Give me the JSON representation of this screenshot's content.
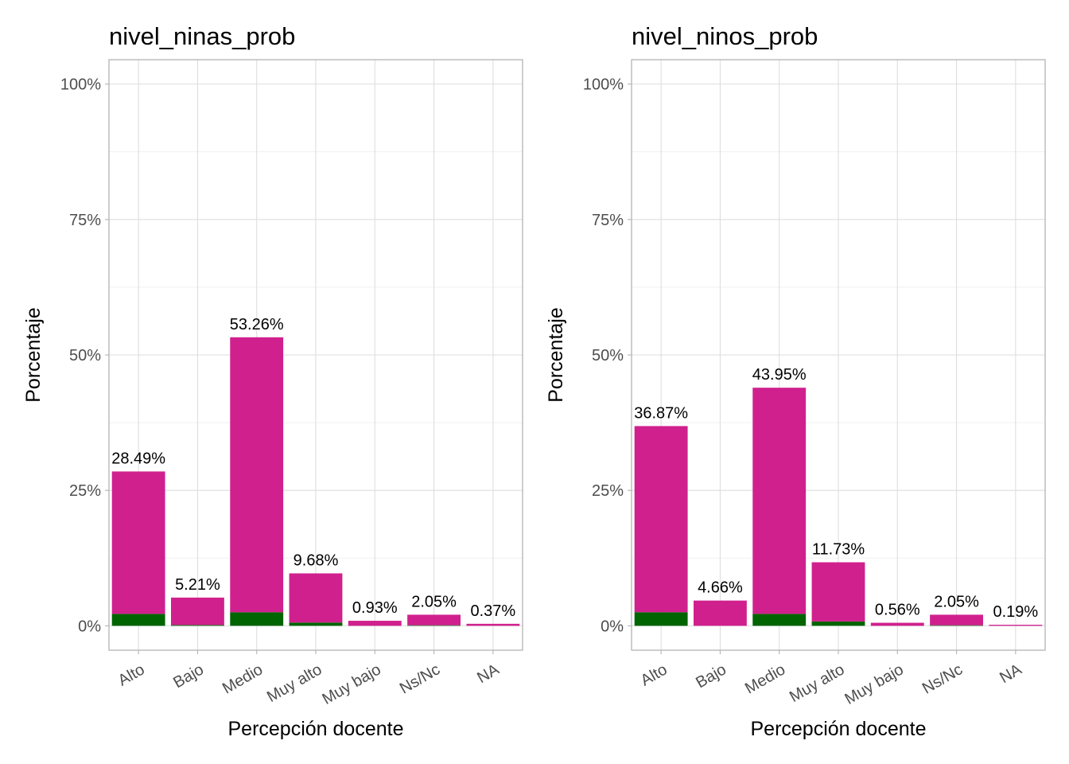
{
  "chart_data": [
    {
      "type": "bar",
      "title": "nivel_ninas_prob",
      "xlabel": "Percepción docente",
      "ylabel": "Porcentaje",
      "ylim": [
        -4.5,
        104.5
      ],
      "yticks": [
        0,
        25,
        50,
        75,
        100
      ],
      "ytick_labels": [
        "0%",
        "25%",
        "50%",
        "75%",
        "100%"
      ],
      "categories": [
        "Alto",
        "Bajo",
        "Medio",
        "Muy alto",
        "Muy bajo",
        "Ns/Nc",
        "NA"
      ],
      "values": [
        28.49,
        5.21,
        53.26,
        9.68,
        0.93,
        2.05,
        0.37
      ],
      "data_labels": [
        "28.49%",
        "5.21%",
        "53.26%",
        "9.68%",
        "0.93%",
        "2.05%",
        "0.37%"
      ],
      "series": [
        {
          "name": "green",
          "color": "#006400",
          "values": [
            2.2,
            0.15,
            2.5,
            0.6,
            0.0,
            0.1,
            0.0
          ]
        },
        {
          "name": "magenta",
          "color": "#D0208E",
          "values": [
            26.29,
            5.06,
            50.76,
            9.08,
            0.93,
            1.95,
            0.37
          ]
        }
      ]
    },
    {
      "type": "bar",
      "title": "nivel_ninos_prob",
      "xlabel": "Percepción docente",
      "ylabel": "Porcentaje",
      "ylim": [
        -4.5,
        104.5
      ],
      "yticks": [
        0,
        25,
        50,
        75,
        100
      ],
      "ytick_labels": [
        "0%",
        "25%",
        "50%",
        "75%",
        "100%"
      ],
      "categories": [
        "Alto",
        "Bajo",
        "Medio",
        "Muy alto",
        "Muy bajo",
        "Ns/Nc",
        "NA"
      ],
      "values": [
        36.87,
        4.66,
        43.95,
        11.73,
        0.56,
        2.05,
        0.19
      ],
      "data_labels": [
        "36.87%",
        "4.66%",
        "43.95%",
        "11.73%",
        "0.56%",
        "2.05%",
        "0.19%"
      ],
      "series": [
        {
          "name": "green",
          "color": "#006400",
          "values": [
            2.5,
            0.0,
            2.2,
            0.8,
            0.0,
            0.1,
            0.0
          ]
        },
        {
          "name": "magenta",
          "color": "#D0208E",
          "values": [
            34.37,
            4.66,
            41.75,
            10.93,
            0.56,
            1.95,
            0.19
          ]
        }
      ]
    }
  ]
}
